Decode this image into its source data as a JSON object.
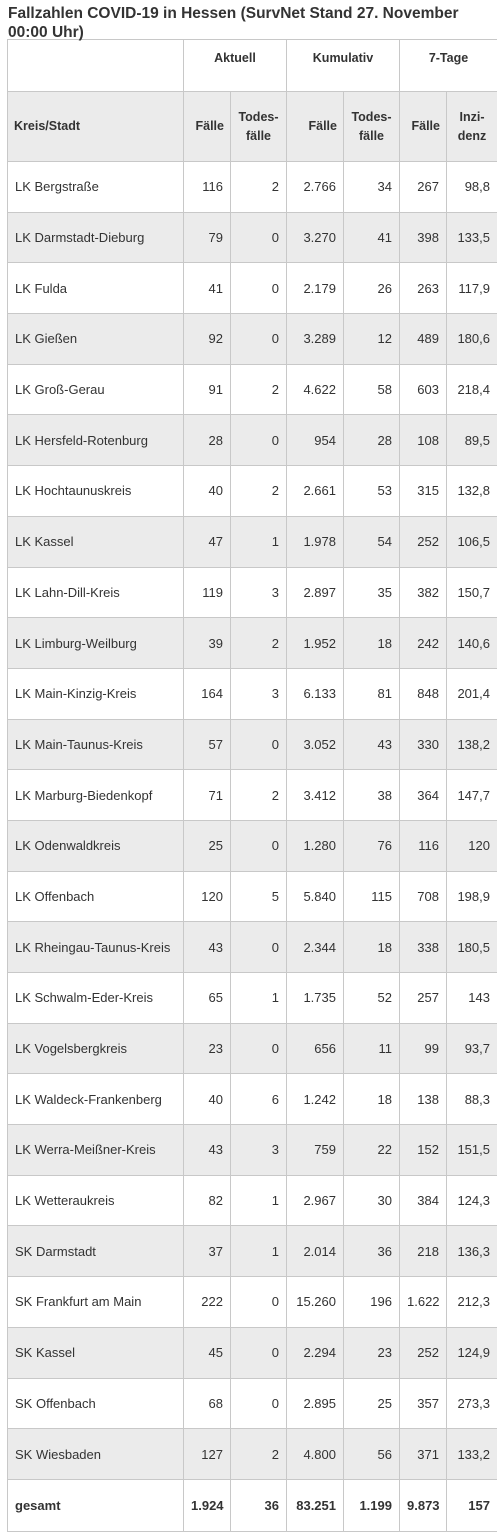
{
  "title": "Fallzahlen COVID-19 in Hessen (SurvNet Stand 27. November 00:00 Uhr)",
  "group_headers": [
    "",
    "Aktuell",
    "Kumulativ",
    "7-Tage"
  ],
  "column_headers": [
    "Kreis/Stadt",
    "Fälle",
    "Todes-fälle",
    "Fälle",
    "Todes-fälle",
    "Fälle",
    "Inzi-denz"
  ],
  "rows": [
    [
      "LK Bergstraße",
      "116",
      "2",
      "2.766",
      "34",
      "267",
      "98,8"
    ],
    [
      "LK Darmstadt-Dieburg",
      "79",
      "0",
      "3.270",
      "41",
      "398",
      "133,5"
    ],
    [
      "LK Fulda",
      "41",
      "0",
      "2.179",
      "26",
      "263",
      "117,9"
    ],
    [
      "LK Gießen",
      "92",
      "0",
      "3.289",
      "12",
      "489",
      "180,6"
    ],
    [
      "LK Groß-Gerau",
      "91",
      "2",
      "4.622",
      "58",
      "603",
      "218,4"
    ],
    [
      "LK Hersfeld-Rotenburg",
      "28",
      "0",
      "954",
      "28",
      "108",
      "89,5"
    ],
    [
      "LK Hochtaunuskreis",
      "40",
      "2",
      "2.661",
      "53",
      "315",
      "132,8"
    ],
    [
      "LK Kassel",
      "47",
      "1",
      "1.978",
      "54",
      "252",
      "106,5"
    ],
    [
      "LK Lahn-Dill-Kreis",
      "119",
      "3",
      "2.897",
      "35",
      "382",
      "150,7"
    ],
    [
      "LK Limburg-Weilburg",
      "39",
      "2",
      "1.952",
      "18",
      "242",
      "140,6"
    ],
    [
      "LK Main-Kinzig-Kreis",
      "164",
      "3",
      "6.133",
      "81",
      "848",
      "201,4"
    ],
    [
      "LK Main-Taunus-Kreis",
      "57",
      "0",
      "3.052",
      "43",
      "330",
      "138,2"
    ],
    [
      "LK Marburg-Biedenkopf",
      "71",
      "2",
      "3.412",
      "38",
      "364",
      "147,7"
    ],
    [
      "LK Odenwaldkreis",
      "25",
      "0",
      "1.280",
      "76",
      "116",
      "120"
    ],
    [
      "LK Offenbach",
      "120",
      "5",
      "5.840",
      "115",
      "708",
      "198,9"
    ],
    [
      "LK Rheingau-Taunus-Kreis",
      "43",
      "0",
      "2.344",
      "18",
      "338",
      "180,5"
    ],
    [
      "LK Schwalm-Eder-Kreis",
      "65",
      "1",
      "1.735",
      "52",
      "257",
      "143"
    ],
    [
      "LK Vogelsbergkreis",
      "23",
      "0",
      "656",
      "11",
      "99",
      "93,7"
    ],
    [
      "LK Waldeck-Frankenberg",
      "40",
      "6",
      "1.242",
      "18",
      "138",
      "88,3"
    ],
    [
      "LK Werra-Meißner-Kreis",
      "43",
      "3",
      "759",
      "22",
      "152",
      "151,5"
    ],
    [
      "LK Wetteraukreis",
      "82",
      "1",
      "2.967",
      "30",
      "384",
      "124,3"
    ],
    [
      "SK Darmstadt",
      "37",
      "1",
      "2.014",
      "36",
      "218",
      "136,3"
    ],
    [
      "SK Frankfurt am Main",
      "222",
      "0",
      "15.260",
      "196",
      "1.622",
      "212,3"
    ],
    [
      "SK Kassel",
      "45",
      "0",
      "2.294",
      "23",
      "252",
      "124,9"
    ],
    [
      "SK Offenbach",
      "68",
      "0",
      "2.895",
      "25",
      "357",
      "273,3"
    ],
    [
      "SK Wiesbaden",
      "127",
      "2",
      "4.800",
      "56",
      "371",
      "133,2"
    ]
  ],
  "total": [
    "gesamt",
    "1.924",
    "36",
    "83.251",
    "1.199",
    "9.873",
    "157"
  ]
}
